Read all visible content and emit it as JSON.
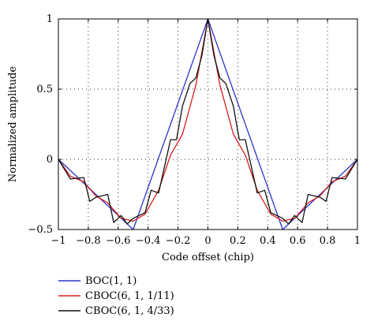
{
  "chart_data": {
    "type": "line",
    "title": "",
    "xlabel": "Code offset (chip)",
    "ylabel": "Normalized amplitude",
    "xlim": [
      -1,
      1
    ],
    "ylim": [
      -0.5,
      1
    ],
    "grid": true,
    "legend_position": "below-plot-left",
    "x_ticks": [
      -1,
      -0.8,
      -0.6,
      -0.4,
      -0.2,
      0,
      0.2,
      0.4,
      0.6,
      0.8,
      1
    ],
    "x_tick_labels": [
      "−1",
      "−0.8",
      "−0.6",
      "−0.4",
      "−0.2",
      "0",
      "0.2",
      "0.4",
      "0.6",
      "0.8",
      "1"
    ],
    "y_ticks": [
      -0.5,
      0,
      0.5,
      1
    ],
    "y_tick_labels": [
      "−0.5",
      "0",
      "0.5",
      "1"
    ],
    "series": [
      {
        "name": "BOC(1, 1)",
        "color": "#2b35c8",
        "x": [
          -1,
          -0.5,
          0,
          0.5,
          1
        ],
        "y": [
          0,
          -0.5,
          1,
          -0.5,
          0
        ]
      },
      {
        "name": "CBOC(6, 1, 1/11)",
        "color": "#d61e1e",
        "x": [
          -1,
          -0.92,
          -0.83,
          -0.75,
          -0.67,
          -0.58,
          -0.5,
          -0.42,
          -0.33,
          -0.25,
          -0.17,
          -0.08,
          0,
          0.08,
          0.17,
          0.25,
          0.33,
          0.42,
          0.5,
          0.58,
          0.67,
          0.75,
          0.83,
          0.92,
          1
        ],
        "y": [
          0,
          -0.12,
          -0.16,
          -0.26,
          -0.31,
          -0.42,
          -0.44,
          -0.39,
          -0.22,
          0.03,
          0.18,
          0.53,
          1,
          0.53,
          0.18,
          0.03,
          -0.22,
          -0.39,
          -0.44,
          -0.42,
          -0.31,
          -0.26,
          -0.16,
          -0.12,
          0
        ]
      },
      {
        "name": "CBOC(6, 1, 4/33)",
        "color": "#111111",
        "x": [
          -1,
          -0.92,
          -0.83,
          -0.79,
          -0.75,
          -0.67,
          -0.63,
          -0.58,
          -0.54,
          -0.5,
          -0.42,
          -0.38,
          -0.33,
          -0.25,
          -0.21,
          -0.17,
          -0.12,
          -0.08,
          -0.04,
          0,
          0.04,
          0.08,
          0.12,
          0.17,
          0.21,
          0.25,
          0.33,
          0.38,
          0.42,
          0.5,
          0.54,
          0.58,
          0.63,
          0.67,
          0.75,
          0.79,
          0.83,
          0.92,
          1
        ],
        "y": [
          0,
          -0.14,
          -0.13,
          -0.3,
          -0.27,
          -0.25,
          -0.45,
          -0.4,
          -0.46,
          -0.42,
          -0.38,
          -0.22,
          -0.24,
          0.14,
          0.14,
          0.38,
          0.54,
          0.58,
          0.74,
          1,
          0.74,
          0.58,
          0.54,
          0.38,
          0.14,
          0.14,
          -0.24,
          -0.22,
          -0.38,
          -0.42,
          -0.46,
          -0.4,
          -0.45,
          -0.25,
          -0.27,
          -0.3,
          -0.13,
          -0.14,
          0
        ]
      }
    ]
  }
}
